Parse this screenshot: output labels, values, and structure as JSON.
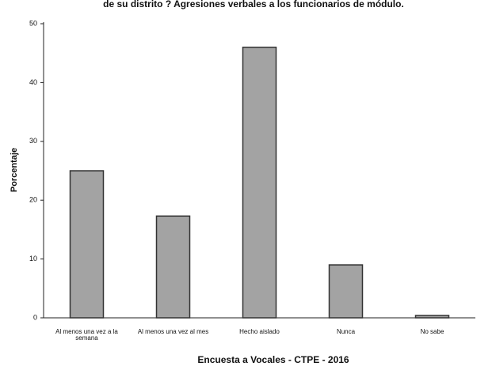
{
  "chart_data": {
    "type": "bar",
    "title": "de su distrito ?   Agresiones verbales a los funcionarios de módulo.",
    "categories": [
      "Al menos una vez a la semana",
      "Al menos una vez al mes",
      "Hecho aislado",
      "Nunca",
      "No sabe"
    ],
    "values": [
      25,
      17.3,
      46,
      9,
      0.4
    ],
    "color": "#a3a3a3",
    "ylim": [
      0,
      50
    ],
    "yticks": [
      0,
      10,
      20,
      30,
      40,
      50
    ],
    "xlabel": "Encuesta a Vocales - CTPE - 2016",
    "ylabel": "Porcentaje",
    "grid": false
  }
}
